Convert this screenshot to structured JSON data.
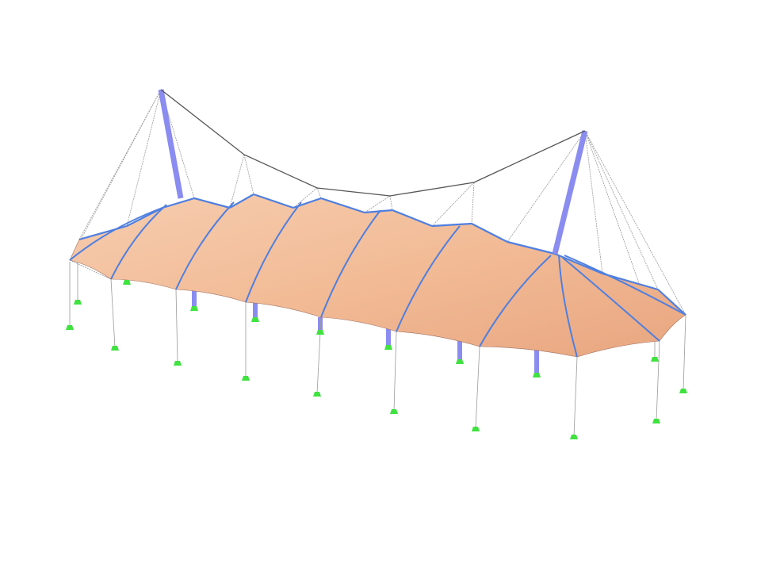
{
  "model": {
    "colors": {
      "background": "#ffffff",
      "membrane": "#f3bf9a",
      "membrane_shade": "#e9a57f",
      "arch": "#4f7fe0",
      "mast": "#8a8cf0",
      "cable": "#555555",
      "guy_line": "#9a9a9a",
      "support": "#3fe23f"
    }
  }
}
